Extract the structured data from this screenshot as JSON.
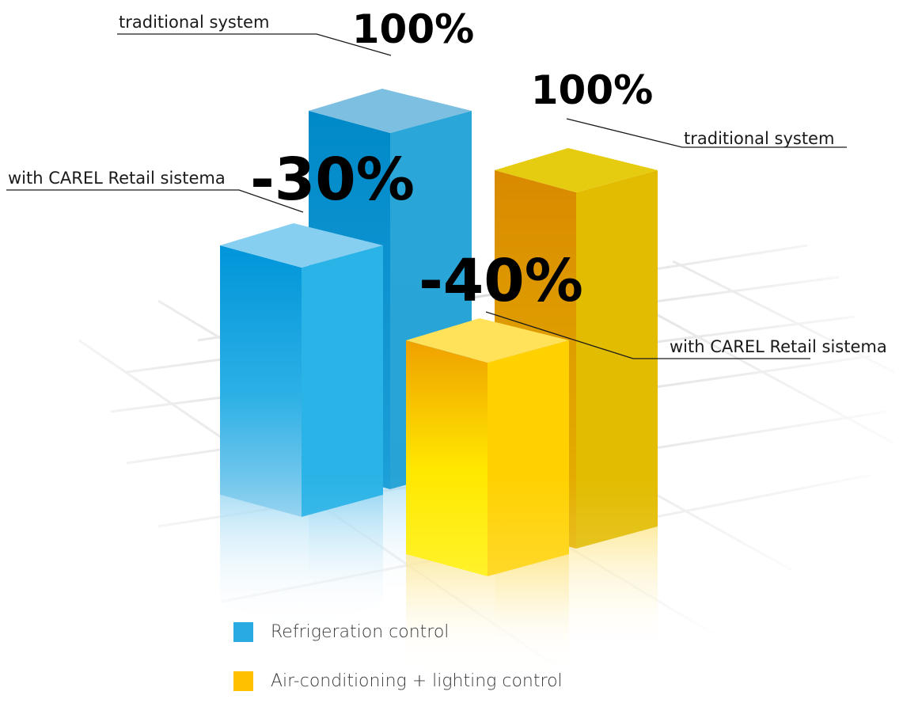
{
  "chart_data": {
    "type": "bar",
    "style": "3d",
    "categories": [
      "traditional system",
      "with CAREL Retail sistema"
    ],
    "series": [
      {
        "name": "Refrigeration control",
        "color": "#29abe2",
        "values": [
          100,
          70
        ],
        "labels": [
          "100%",
          "-30%"
        ],
        "callouts": [
          "traditional system",
          "with CAREL Retail sistema"
        ]
      },
      {
        "name": "Air-conditioning + lighting control",
        "color": "#ffc000",
        "values": [
          100,
          60
        ],
        "labels": [
          "100%",
          "-40%"
        ],
        "callouts": [
          "traditional system",
          "with CAREL Retail sistema"
        ]
      }
    ],
    "ylim": [
      0,
      100
    ],
    "grid": true,
    "legend_position": "bottom"
  }
}
